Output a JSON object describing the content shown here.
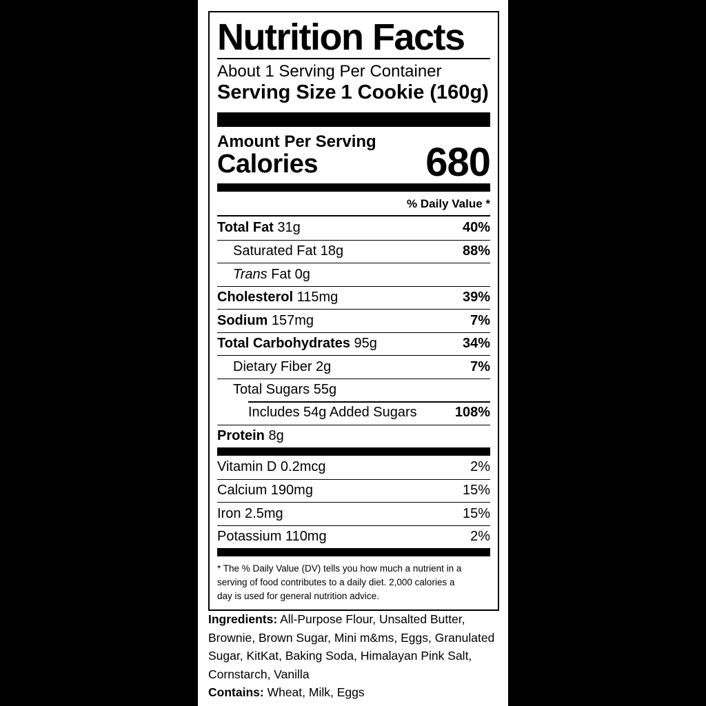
{
  "label": {
    "title": "Nutrition Facts",
    "servings_per_container": "About 1 Serving Per Container",
    "serving_size_label": "Serving Size",
    "serving_size_value": "1 Cookie (160g)",
    "amount_per_serving": "Amount Per Serving",
    "calories_label": "Calories",
    "calories_value": "680",
    "daily_value_header": "% Daily Value *",
    "nutrients": [
      {
        "parts": [
          {
            "text": "Total Fat",
            "style": "bold"
          },
          {
            "text": " 31g",
            "style": "plain"
          }
        ],
        "percent": "40%",
        "percent_bold": true,
        "indent": 0
      },
      {
        "parts": [
          {
            "text": "Saturated Fat 18g",
            "style": "plain"
          }
        ],
        "percent": "88%",
        "percent_bold": true,
        "indent": 1
      },
      {
        "parts": [
          {
            "text": "Trans",
            "style": "italic"
          },
          {
            "text": " Fat 0g",
            "style": "plain"
          }
        ],
        "percent": "",
        "percent_bold": false,
        "indent": 1
      },
      {
        "parts": [
          {
            "text": "Cholesterol",
            "style": "bold"
          },
          {
            "text": " 115mg",
            "style": "plain"
          }
        ],
        "percent": "39%",
        "percent_bold": true,
        "indent": 0
      },
      {
        "parts": [
          {
            "text": "Sodium",
            "style": "bold"
          },
          {
            "text": " 157mg",
            "style": "plain"
          }
        ],
        "percent": "7%",
        "percent_bold": true,
        "indent": 0
      },
      {
        "parts": [
          {
            "text": "Total Carbohydrates",
            "style": "bold"
          },
          {
            "text": " 95g",
            "style": "plain"
          }
        ],
        "percent": "34%",
        "percent_bold": true,
        "indent": 0
      },
      {
        "parts": [
          {
            "text": "Dietary Fiber 2g",
            "style": "plain"
          }
        ],
        "percent": "7%",
        "percent_bold": true,
        "indent": 1
      },
      {
        "parts": [
          {
            "text": "Total Sugars 55g",
            "style": "plain"
          }
        ],
        "percent": "",
        "percent_bold": false,
        "indent": 1
      },
      {
        "parts": [
          {
            "text": "Includes 54g Added Sugars",
            "style": "plain"
          }
        ],
        "percent": "108%",
        "percent_bold": true,
        "indent": 2,
        "rule": "indent"
      },
      {
        "parts": [
          {
            "text": "Protein",
            "style": "bold"
          },
          {
            "text": " 8g",
            "style": "plain"
          }
        ],
        "percent": "",
        "percent_bold": false,
        "indent": 0
      }
    ],
    "vitamins": [
      {
        "parts": [
          {
            "text": "Vitamin D 0.2mcg",
            "style": "plain"
          }
        ],
        "percent": "2%",
        "percent_bold": false,
        "indent": 0
      },
      {
        "parts": [
          {
            "text": "Calcium 190mg",
            "style": "plain"
          }
        ],
        "percent": "15%",
        "percent_bold": false,
        "indent": 0
      },
      {
        "parts": [
          {
            "text": "Iron 2.5mg",
            "style": "plain"
          }
        ],
        "percent": "15%",
        "percent_bold": false,
        "indent": 0
      },
      {
        "parts": [
          {
            "text": "Potassium 110mg",
            "style": "plain"
          }
        ],
        "percent": "2%",
        "percent_bold": false,
        "indent": 0
      }
    ],
    "footnote": "* The % Daily Value (DV) tells you how much a nutrient in a\nserving of food contributes to a daily diet. 2,000 calories a\nday is used for general nutrition advice.",
    "ingredients_label": "Ingredients:",
    "ingredients_text": "All-Purpose Flour, Unsalted Butter,\nBrownie, Brown Sugar, Mini m&ms, Eggs, Granulated\nSugar, KitKat, Baking Soda, Himalayan Pink Salt,\nCornstarch, Vanilla",
    "contains_label": "Contains:",
    "contains_text": "Wheat, Milk, Eggs"
  }
}
